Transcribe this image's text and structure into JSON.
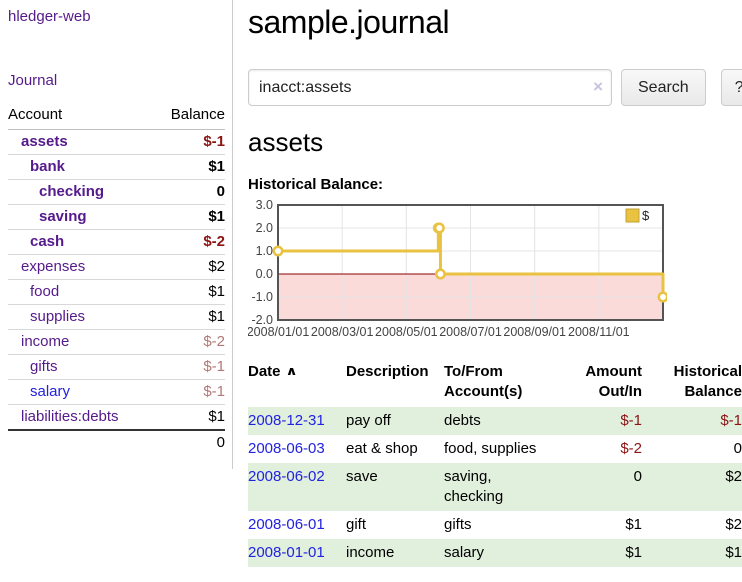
{
  "app": {
    "title": "hledger-web"
  },
  "sidebar": {
    "journal_link": "Journal",
    "columns": {
      "account": "Account",
      "balance": "Balance"
    },
    "accounts": [
      {
        "name": "assets",
        "level": 0,
        "balance": "$-1",
        "bold": true
      },
      {
        "name": "bank",
        "level": 1,
        "balance": "$1",
        "bold": true
      },
      {
        "name": "checking",
        "level": 2,
        "balance": "0",
        "bold": true
      },
      {
        "name": "saving",
        "level": 2,
        "balance": "$1",
        "bold": true
      },
      {
        "name": "cash",
        "level": 1,
        "balance": "$-2",
        "bold": true
      },
      {
        "name": "expenses",
        "level": 0,
        "balance": "$2",
        "bold": false
      },
      {
        "name": "food",
        "level": 1,
        "balance": "$1",
        "bold": false
      },
      {
        "name": "supplies",
        "level": 1,
        "balance": "$1",
        "bold": false
      },
      {
        "name": "income",
        "level": 0,
        "balance": "$-2",
        "bold": false
      },
      {
        "name": "gifts",
        "level": 1,
        "balance": "$-1",
        "bold": false
      },
      {
        "name": "salary",
        "level": 1,
        "balance": "$-1",
        "bold": false,
        "color": "blue"
      },
      {
        "name": "liabilities:debts",
        "level": 0,
        "balance": "$1",
        "bold": false
      }
    ],
    "total": "0"
  },
  "main": {
    "title": "sample.journal",
    "search": {
      "value": "inacct:assets",
      "clear_icon": "×",
      "button": "Search",
      "help": "?"
    },
    "account_heading": "assets",
    "chart_title": "Historical Balance:"
  },
  "chart_data": {
    "type": "line",
    "step": true,
    "series": [
      {
        "name": "$",
        "color": "#e8c240",
        "points": [
          [
            "2008-01-01",
            1
          ],
          [
            "2008-06-01",
            2
          ],
          [
            "2008-06-02",
            2
          ],
          [
            "2008-06-03",
            0
          ],
          [
            "2008-12-31",
            -1
          ]
        ]
      }
    ],
    "x_range": [
      "2008-01-01",
      "2008-12-31"
    ],
    "ylim": [
      -2,
      3
    ],
    "y_ticks": [
      "3.0",
      "2.0",
      "1.0",
      "0.0",
      "-1.0",
      "-2.0"
    ],
    "x_tick_labels": [
      "2008/01/01",
      "2008/03/01",
      "2008/05/01",
      "2008/07/01",
      "2008/09/01",
      "2008/11/01"
    ],
    "legend_position": "top-right",
    "grid": true,
    "negative_region_fill": "#fbdada",
    "zero_line_color": "#8b0000",
    "border_color": "#545454",
    "tick_color": "#444444"
  },
  "register": {
    "headers": {
      "date": "Date",
      "sort_indicator": "∧",
      "description": "Description",
      "accounts": "To/From Account(s)",
      "amount": "Amount Out/In",
      "balance": "Historical Balance"
    },
    "rows": [
      {
        "date": "2008-12-31",
        "description": "pay off",
        "accounts": [
          "debts"
        ],
        "amount": "$-1",
        "balance": "$-1"
      },
      {
        "date": "2008-06-03",
        "description": "eat & shop",
        "accounts": [
          "food",
          "supplies"
        ],
        "amount": "$-2",
        "balance": "0"
      },
      {
        "date": "2008-06-02",
        "description": "save",
        "accounts": [
          "saving",
          "checking"
        ],
        "amount": "0",
        "balance": "$2"
      },
      {
        "date": "2008-06-01",
        "description": "gift",
        "accounts": [
          "gifts"
        ],
        "amount": "$1",
        "balance": "$2"
      },
      {
        "date": "2008-01-01",
        "description": "income",
        "accounts": [
          "salary"
        ],
        "amount": "$1",
        "balance": "$1"
      }
    ]
  }
}
